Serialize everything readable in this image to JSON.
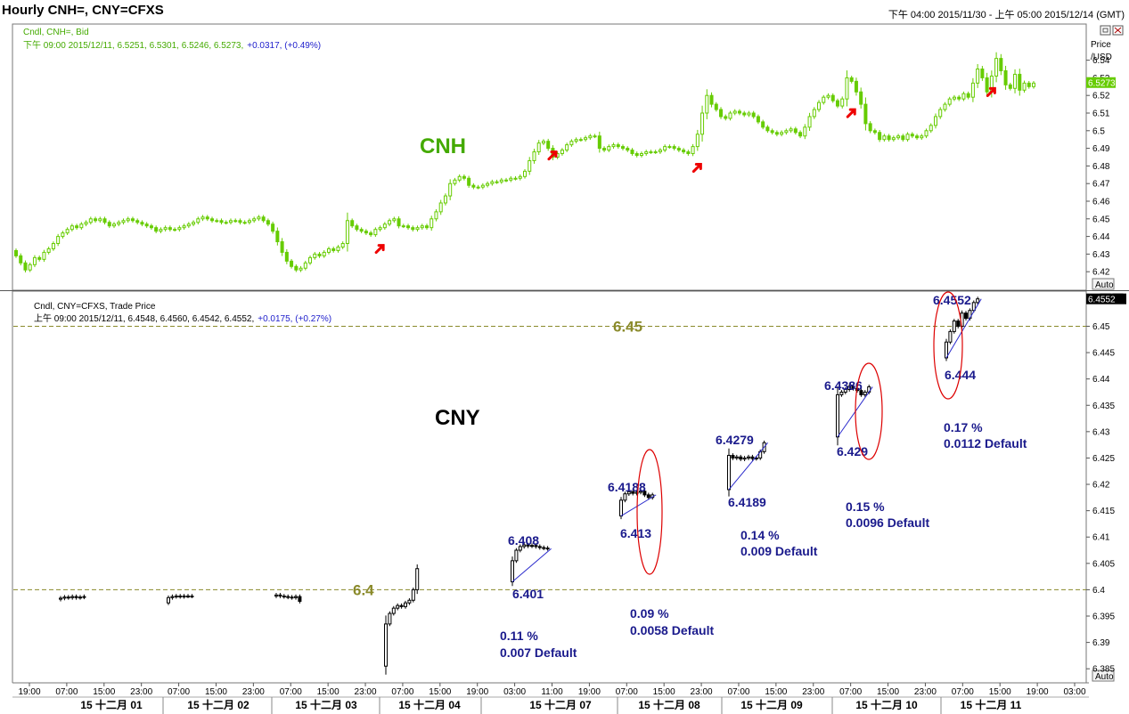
{
  "window_title": "Hourly CNH=, CNY=CFXS",
  "time_range": "下午 04:00 2015/11/30 - 上午 05:00 2015/12/14 (GMT)",
  "auto_label": "Auto",
  "colors": {
    "cnh_candle": "#66cc00",
    "cnh_label": "#44aa00",
    "cny_candle": "#000000",
    "annotation": "#1a1a8c",
    "level_line": "#8a8a2a",
    "arrow": "#ee0000",
    "ellipse": "#dd0000"
  },
  "chart_data": [
    {
      "type": "candlestick",
      "panel": "top",
      "label": "CNH",
      "legend": "Cndl, CNH=, Bid",
      "info_prefix": "下午 09:00 2015/12/11, 6.5251, 6.5301, 6.5246, 6.5273,",
      "info_change": "+0.0317, (+0.49%)",
      "axis_title_1": "Price",
      "axis_title_2": "/USD",
      "last_price": "6.5273",
      "ylim": [
        6.41,
        6.56
      ],
      "yticks": [
        6.42,
        6.43,
        6.44,
        6.45,
        6.46,
        6.47,
        6.48,
        6.49,
        6.5,
        6.51,
        6.52,
        6.53,
        6.54
      ],
      "closes": [
        6.429,
        6.425,
        6.421,
        6.424,
        6.428,
        6.427,
        6.431,
        6.433,
        6.436,
        6.44,
        6.442,
        6.444,
        6.446,
        6.445,
        6.447,
        6.448,
        6.45,
        6.449,
        6.45,
        6.448,
        6.446,
        6.447,
        6.448,
        6.449,
        6.45,
        6.449,
        6.448,
        6.447,
        6.446,
        6.445,
        6.443,
        6.444,
        6.445,
        6.444,
        6.444,
        6.445,
        6.446,
        6.447,
        6.448,
        6.45,
        6.451,
        6.45,
        6.449,
        6.449,
        6.448,
        6.448,
        6.449,
        6.449,
        6.448,
        6.448,
        6.449,
        6.45,
        6.451,
        6.449,
        6.447,
        6.443,
        6.437,
        6.431,
        6.426,
        6.423,
        6.421,
        6.422,
        6.425,
        6.428,
        6.43,
        6.429,
        6.431,
        6.433,
        6.432,
        6.434,
        6.436,
        6.449,
        6.446,
        6.444,
        6.443,
        6.442,
        6.441,
        6.444,
        6.445,
        6.447,
        6.449,
        6.45,
        6.446,
        6.446,
        6.445,
        6.444,
        6.445,
        6.446,
        6.445,
        6.45,
        6.454,
        6.459,
        6.463,
        6.47,
        6.472,
        6.474,
        6.473,
        6.469,
        6.468,
        6.468,
        6.469,
        6.47,
        6.471,
        6.471,
        6.472,
        6.472,
        6.473,
        6.473,
        6.474,
        6.477,
        6.483,
        6.488,
        6.493,
        6.494,
        6.49,
        6.485,
        6.487,
        6.489,
        6.492,
        6.494,
        6.495,
        6.495,
        6.496,
        6.497,
        6.497,
        6.49,
        6.489,
        6.491,
        6.492,
        6.491,
        6.49,
        6.489,
        6.487,
        6.486,
        6.487,
        6.488,
        6.488,
        6.488,
        6.489,
        6.491,
        6.491,
        6.49,
        6.489,
        6.488,
        6.487,
        6.491,
        6.498,
        6.51,
        6.52,
        6.515,
        6.512,
        6.508,
        6.507,
        6.51,
        6.511,
        6.51,
        6.509,
        6.51,
        6.508,
        6.505,
        6.502,
        6.5,
        6.499,
        6.498,
        6.499,
        6.5,
        6.501,
        6.499,
        6.497,
        6.502,
        6.508,
        6.512,
        6.516,
        6.519,
        6.52,
        6.517,
        6.514,
        6.518,
        6.53,
        6.528,
        6.522,
        6.515,
        6.504,
        6.5,
        6.499,
        6.495,
        6.497,
        6.495,
        6.496,
        6.497,
        6.495,
        6.498,
        6.497,
        6.496,
        6.497,
        6.5,
        6.503,
        6.508,
        6.512,
        6.515,
        6.518,
        6.519,
        6.518,
        6.521,
        6.519,
        6.527,
        6.535,
        6.53,
        6.522,
        6.531,
        6.541,
        6.534,
        6.526,
        6.524,
        6.532,
        6.523,
        6.527,
        6.525,
        6.527
      ],
      "arrows_at_candle": [
        76,
        113,
        144,
        177,
        207
      ]
    },
    {
      "type": "candlestick",
      "panel": "bottom",
      "label": "CNY",
      "legend": "Cndl, CNY=CFXS, Trade Price",
      "info_prefix": "上午 09:00 2015/12/11, 6.4548, 6.4560, 6.4542, 6.4552,",
      "info_change": "+0.0175, (+0.27%)",
      "last_price": "6.4552",
      "ylim": [
        6.3825,
        6.4565
      ],
      "yticks": [
        6.385,
        6.39,
        6.395,
        6.4,
        6.405,
        6.41,
        6.415,
        6.42,
        6.425,
        6.43,
        6.435,
        6.44,
        6.445,
        6.45
      ],
      "reference_lines": [
        {
          "value": 6.4,
          "label": "6.4"
        },
        {
          "value": 6.45,
          "label": "6.45"
        }
      ],
      "segments": [
        {
          "start": 6.3982,
          "closes": [
            6.3984,
            6.3986,
            6.3985,
            6.3987,
            6.3985,
            6.3986,
            6.3987
          ]
        },
        {
          "start": 6.3975,
          "closes": [
            6.3985,
            6.3987,
            6.3988,
            6.3987,
            6.3988,
            6.3988,
            6.3988
          ]
        },
        {
          "start": 6.3988,
          "closes": [
            6.399,
            6.3988,
            6.3987,
            6.3986,
            6.3985,
            6.3987,
            6.3978
          ]
        },
        {
          "start": 6.3855,
          "closes": [
            6.3935,
            6.3955,
            6.3965,
            6.397,
            6.3968,
            6.3975,
            6.398,
            6.4,
            6.404
          ]
        },
        {
          "start": 6.4015,
          "closes": [
            6.4055,
            6.4075,
            6.4082,
            6.4085,
            6.4083,
            6.4084,
            6.4082,
            6.408,
            6.4079,
            6.4078
          ]
        },
        {
          "start": 6.414,
          "closes": [
            6.417,
            6.4182,
            6.4186,
            6.4183,
            6.4185,
            6.4187,
            6.418,
            6.4175,
            6.418
          ]
        },
        {
          "start": 6.419,
          "closes": [
            6.4255,
            6.425,
            6.4252,
            6.4248,
            6.425,
            6.4252,
            6.4249,
            6.425,
            6.4262,
            6.4279
          ]
        },
        {
          "start": 6.429,
          "closes": [
            6.437,
            6.4375,
            6.438,
            6.4386,
            6.4382,
            6.4378,
            6.437,
            6.4375,
            6.4385
          ]
        },
        {
          "start": 6.444,
          "closes": [
            6.447,
            6.449,
            6.451,
            6.45,
            6.4525,
            6.4515,
            6.453,
            6.4545,
            6.4552
          ]
        }
      ],
      "annotations": [
        {
          "high": "6.408",
          "low": "6.401",
          "pct": "0.11 %",
          "def": "0.007 Default"
        },
        {
          "high": "6.4188",
          "low": "6.413",
          "pct": "0.09 %",
          "def": "0.0058 Default"
        },
        {
          "high": "6.4279",
          "low": "6.4189",
          "pct": "0.14 %",
          "def": "0.009 Default"
        },
        {
          "high": "6.4386",
          "low": "6.429",
          "pct": "0.15 %",
          "def": "0.0096 Default"
        },
        {
          "high": "6.4552",
          "low": "6.444",
          "pct": "0.17 %",
          "def": "0.0112 Default"
        }
      ]
    }
  ],
  "x_axis": {
    "hour_ticks": [
      "19:00",
      "07:00",
      "15:00",
      "23:00",
      "07:00",
      "15:00",
      "23:00",
      "07:00",
      "15:00",
      "23:00",
      "07:00",
      "15:00",
      "19:00",
      "03:00",
      "11:00",
      "19:00",
      "07:00",
      "15:00",
      "23:00",
      "07:00",
      "15:00",
      "23:00",
      "07:00",
      "15:00",
      "23:00",
      "07:00",
      "15:00",
      "19:00",
      "03:00"
    ],
    "day_labels": [
      "15 十二月 01",
      "15 十二月 02",
      "15 十二月 03",
      "15 十二月 04",
      "15 十二月 07",
      "15 十二月 08",
      "15 十二月 09",
      "15 十二月 10",
      "15 十二月 11"
    ]
  }
}
